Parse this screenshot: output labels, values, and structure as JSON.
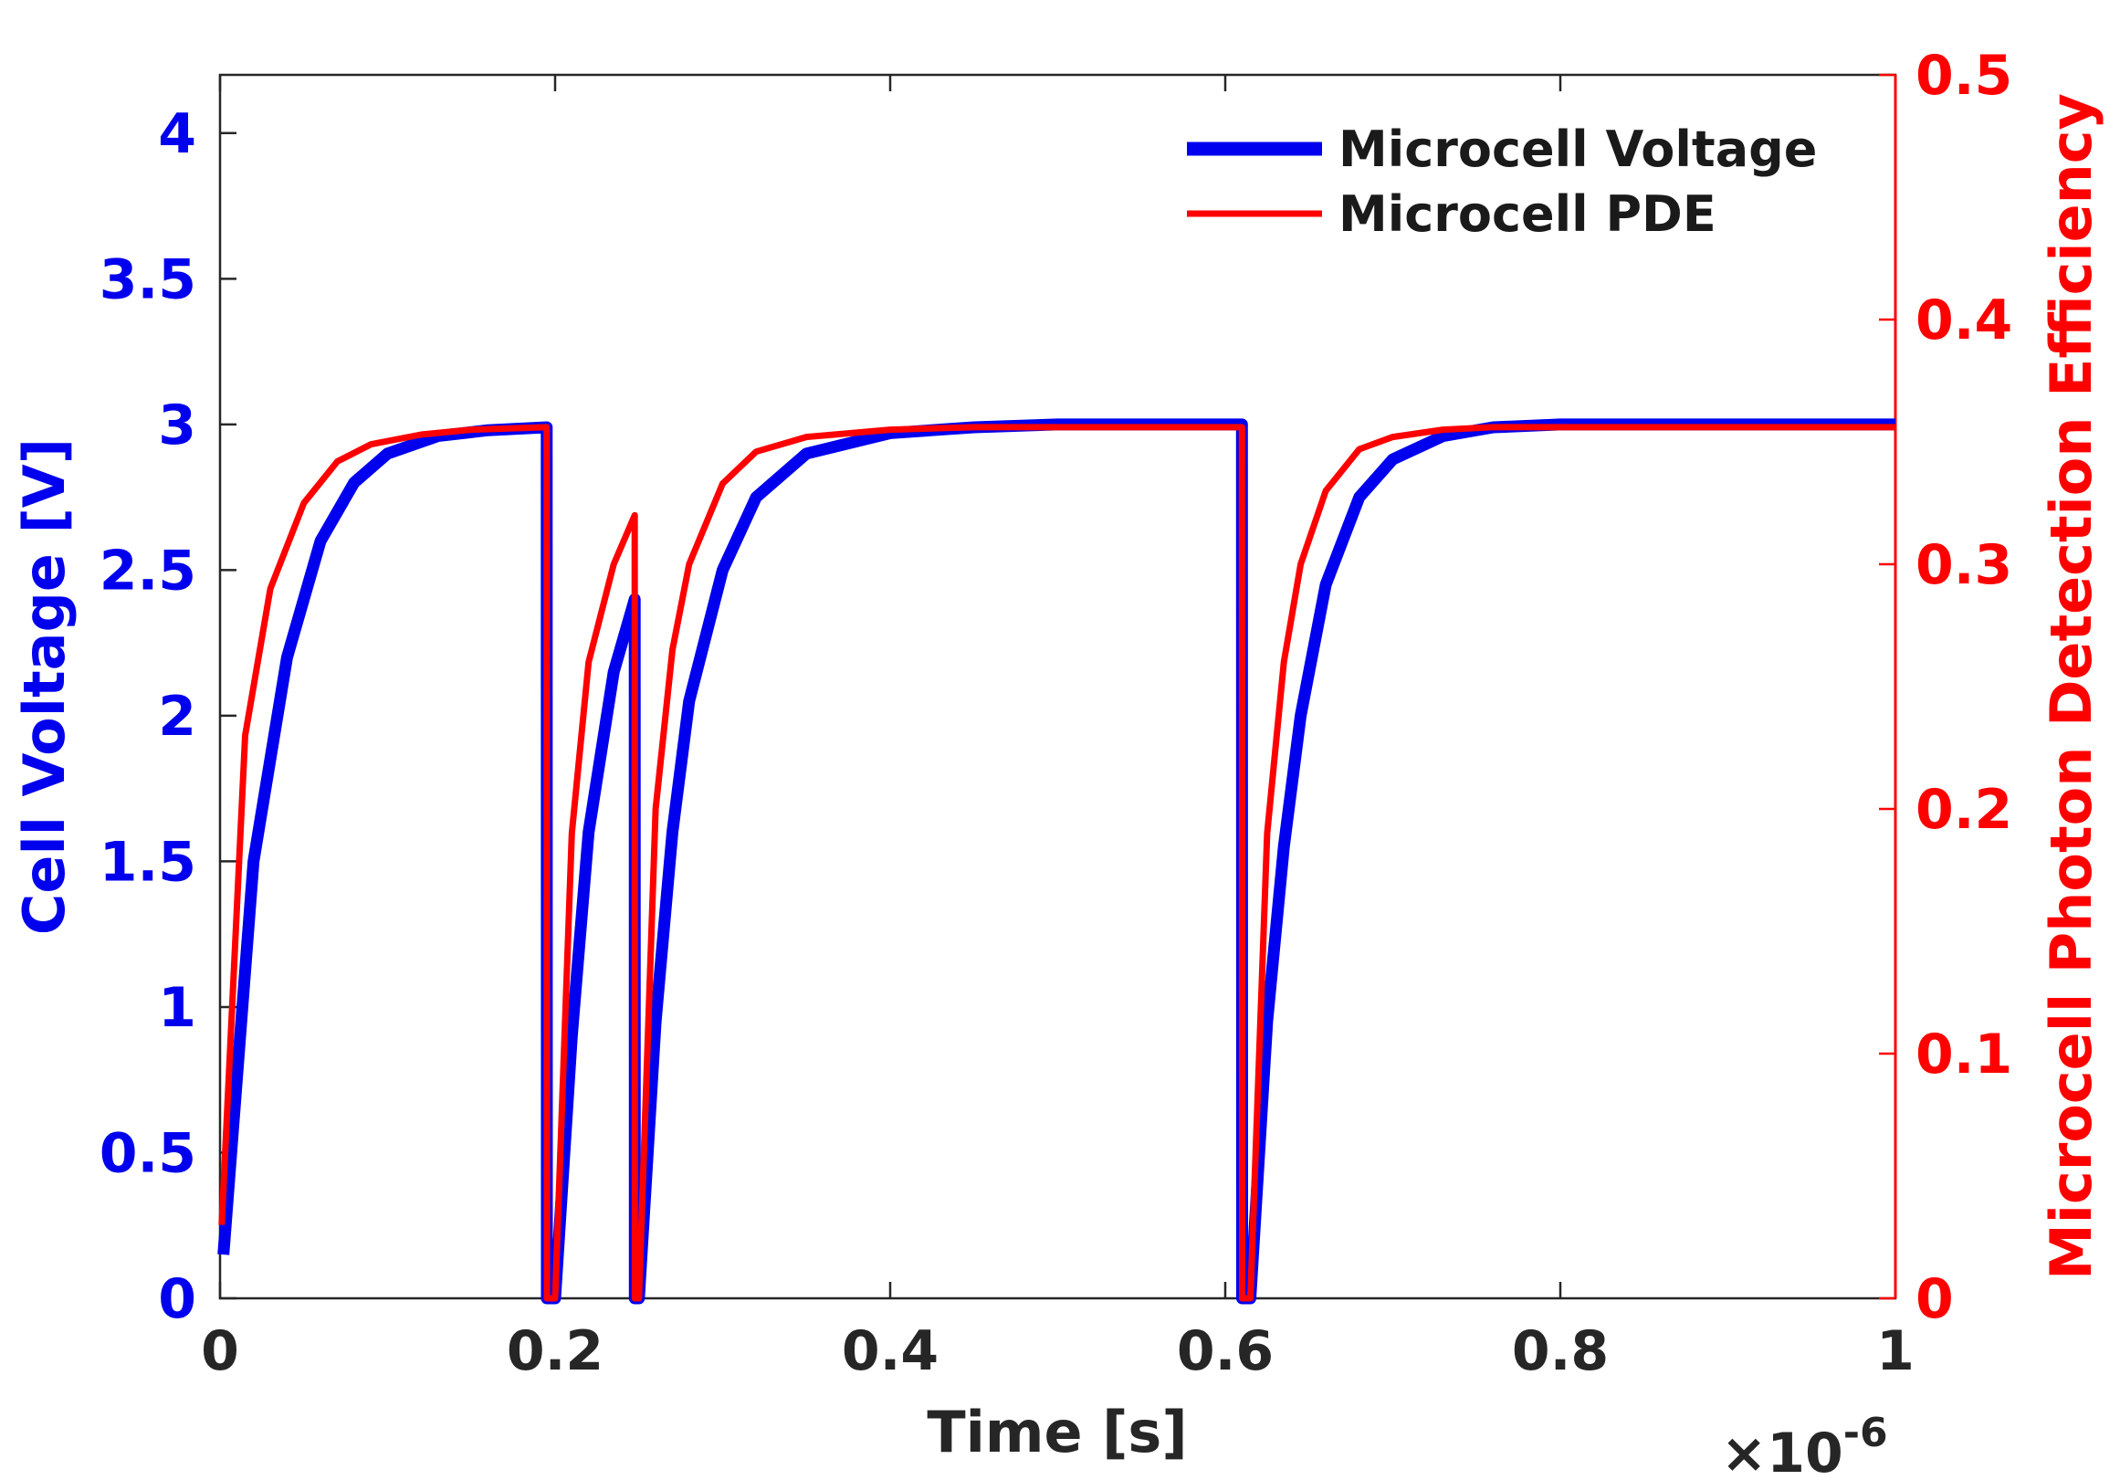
{
  "chart_data": {
    "type": "line",
    "xlabel": "Time [s]",
    "x_multiplier_base": "×10",
    "x_multiplier_exponent": "-6",
    "ylabel_left": "Cell Voltage [V]",
    "ylabel_right": "Microcell Photon Detection Efficiency",
    "xlim": [
      0,
      1
    ],
    "ylim_left": [
      0,
      4.2
    ],
    "ylim_right": [
      0,
      0.5
    ],
    "x_ticks": [
      "0",
      "0.2",
      "0.4",
      "0.6",
      "0.8",
      "1"
    ],
    "y_left_ticks": [
      "0",
      "0.5",
      "1",
      "1.5",
      "2",
      "2.5",
      "3",
      "3.5",
      "4"
    ],
    "y_right_ticks": [
      "0",
      "0.1",
      "0.2",
      "0.3",
      "0.4",
      "0.5"
    ],
    "grid": false,
    "legend_position": "top-right",
    "colors": {
      "voltage": "#0000ee",
      "pde": "#ff0000",
      "axis": "#262626"
    },
    "series": [
      {
        "name": "Microcell Voltage",
        "axis": "left",
        "x": [
          0.002,
          0.02,
          0.04,
          0.06,
          0.08,
          0.1,
          0.13,
          0.16,
          0.195,
          0.1951,
          0.2,
          0.21,
          0.22,
          0.235,
          0.2475,
          0.2476,
          0.25,
          0.26,
          0.27,
          0.28,
          0.3,
          0.32,
          0.35,
          0.4,
          0.45,
          0.5,
          0.55,
          0.61,
          0.6101,
          0.615,
          0.625,
          0.635,
          0.645,
          0.66,
          0.68,
          0.7,
          0.73,
          0.76,
          0.8,
          0.85,
          0.9,
          1.0
        ],
        "y": [
          0.15,
          1.5,
          2.2,
          2.6,
          2.8,
          2.9,
          2.96,
          2.98,
          2.99,
          0,
          0,
          0.9,
          1.6,
          2.15,
          2.4,
          0,
          0,
          0.95,
          1.6,
          2.05,
          2.5,
          2.75,
          2.9,
          2.97,
          2.99,
          3.0,
          3.0,
          3.0,
          0,
          0,
          0.95,
          1.55,
          2.0,
          2.45,
          2.75,
          2.88,
          2.96,
          2.99,
          3.0,
          3.0,
          3.0,
          3.0
        ]
      },
      {
        "name": "Microcell PDE",
        "axis": "right",
        "x": [
          0.001,
          0.015,
          0.03,
          0.05,
          0.07,
          0.09,
          0.12,
          0.15,
          0.195,
          0.1951,
          0.2,
          0.21,
          0.22,
          0.235,
          0.2475,
          0.2476,
          0.25,
          0.26,
          0.27,
          0.28,
          0.3,
          0.32,
          0.35,
          0.4,
          0.45,
          0.5,
          0.55,
          0.61,
          0.6101,
          0.615,
          0.625,
          0.635,
          0.645,
          0.66,
          0.68,
          0.7,
          0.73,
          0.76,
          0.8,
          0.85,
          0.9,
          1.0
        ],
        "y": [
          0.03,
          0.23,
          0.29,
          0.325,
          0.342,
          0.349,
          0.353,
          0.355,
          0.356,
          0,
          0,
          0.19,
          0.26,
          0.3,
          0.32,
          0,
          0,
          0.2,
          0.265,
          0.3,
          0.333,
          0.346,
          0.352,
          0.355,
          0.356,
          0.356,
          0.356,
          0.356,
          0,
          0,
          0.19,
          0.26,
          0.3,
          0.33,
          0.347,
          0.352,
          0.355,
          0.356,
          0.356,
          0.356,
          0.356,
          0.356
        ]
      }
    ]
  }
}
